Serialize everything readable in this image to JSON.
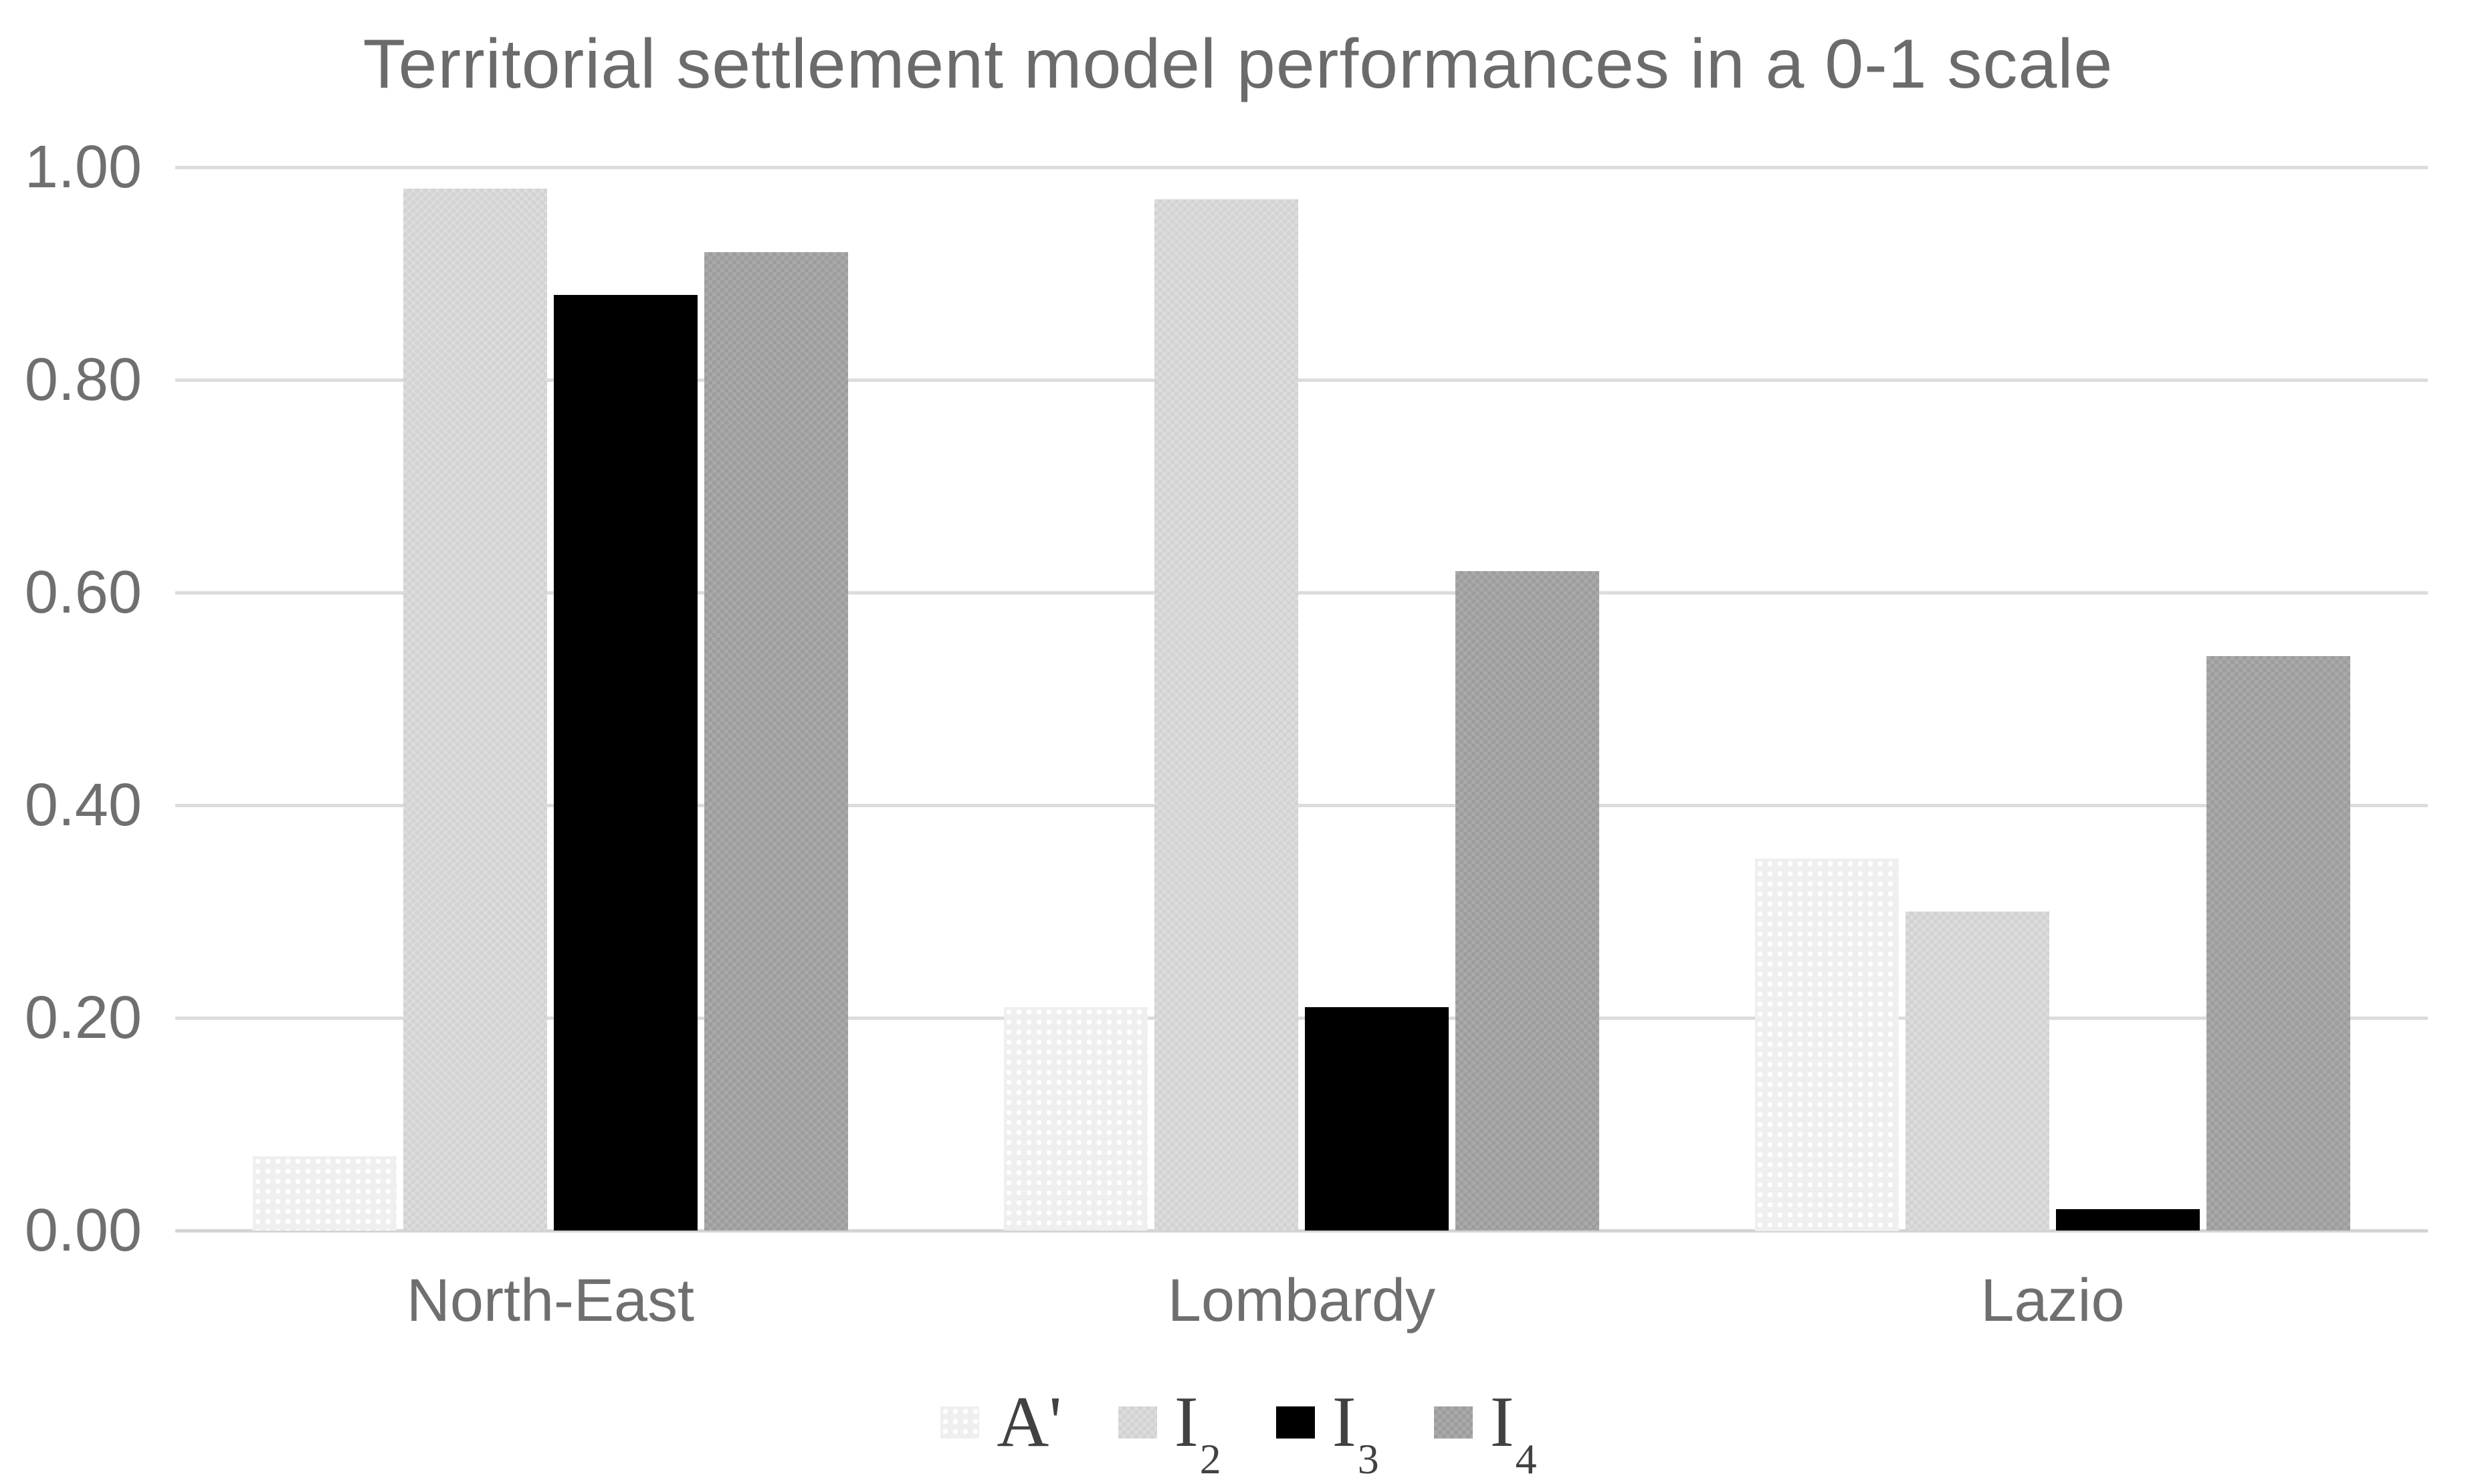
{
  "chart_data": {
    "type": "bar",
    "title": "Territorial settlement model performances in a 0-1 scale",
    "categories": [
      "North-East",
      "Lombardy",
      "Lazio"
    ],
    "series": [
      {
        "name": "A'",
        "sub": "",
        "color": "#efefef",
        "pattern": "white-dots",
        "values": [
          0.07,
          0.21,
          0.35
        ]
      },
      {
        "name": "I",
        "sub": "2",
        "color": "#dcdcdc",
        "pattern": "light-checker",
        "values": [
          0.98,
          0.97,
          0.3
        ]
      },
      {
        "name": "I",
        "sub": "3",
        "color": "#000000",
        "pattern": "solid",
        "values": [
          0.88,
          0.21,
          0.02
        ]
      },
      {
        "name": "I",
        "sub": "4",
        "color": "#a9a9a9",
        "pattern": "gray-checker",
        "values": [
          0.92,
          0.62,
          0.54
        ]
      }
    ],
    "xlabel": "",
    "ylabel": "",
    "ylim": [
      0,
      1
    ],
    "yticks": [
      {
        "value": 0.0,
        "label": "0.00"
      },
      {
        "value": 0.2,
        "label": "0.20"
      },
      {
        "value": 0.4,
        "label": "0.40"
      },
      {
        "value": 0.6,
        "label": "0.60"
      },
      {
        "value": 0.8,
        "label": "0.80"
      },
      {
        "value": 1.0,
        "label": "1.00"
      }
    ],
    "grid": true,
    "gridline_color": "#dcdcdc",
    "text_color": "#6f6f6f",
    "legend_position": "bottom"
  }
}
